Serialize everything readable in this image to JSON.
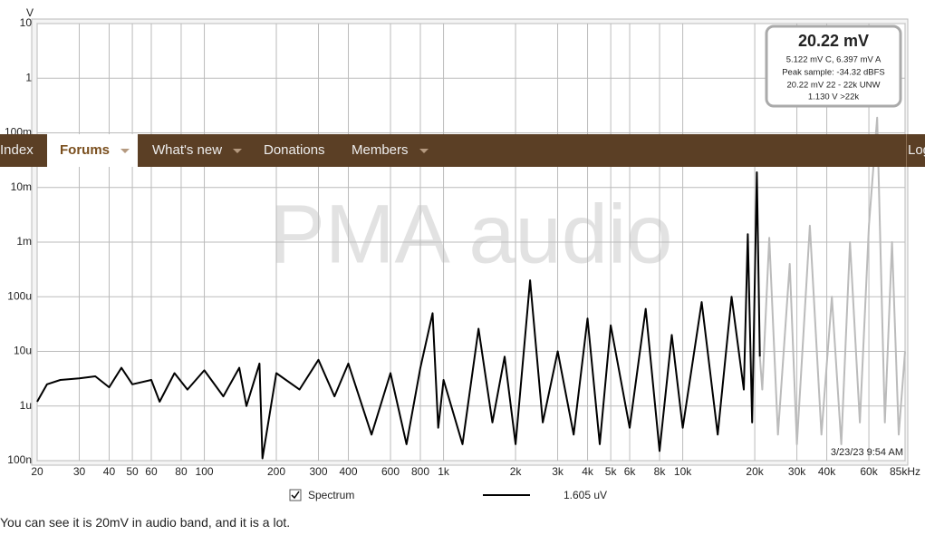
{
  "nav": {
    "items": [
      "Index",
      "Forums",
      "What's new",
      "Donations",
      "Members"
    ],
    "login": "Log"
  },
  "chart_data": {
    "type": "line",
    "ylabel": "V",
    "xscale": "log",
    "yscale": "log",
    "grid": true,
    "xlim": [
      20,
      85000
    ],
    "ylim": [
      1e-07,
      10
    ],
    "xticks": [
      20,
      30,
      40,
      50,
      60,
      80,
      100,
      200,
      300,
      400,
      600,
      800,
      {
        "value": 1000,
        "label": "1k"
      },
      {
        "value": 2000,
        "label": "2k"
      },
      {
        "value": 3000,
        "label": "3k"
      },
      {
        "value": 4000,
        "label": "4k"
      },
      {
        "value": 5000,
        "label": "5k"
      },
      {
        "value": 6000,
        "label": "6k"
      },
      {
        "value": 8000,
        "label": "8k"
      },
      {
        "value": 10000,
        "label": "10k"
      },
      {
        "value": 20000,
        "label": "20k"
      },
      {
        "value": 30000,
        "label": "30k"
      },
      {
        "value": 40000,
        "label": "40k"
      },
      {
        "value": 60000,
        "label": "60k"
      },
      {
        "value": 85000,
        "label": "85kHz"
      }
    ],
    "yticks": [
      10,
      1,
      {
        "value": 0.1,
        "label": "100m"
      },
      {
        "value": 0.01,
        "label": "10m"
      },
      {
        "value": 0.001,
        "label": "1m"
      },
      {
        "value": 0.0001,
        "label": "100u"
      },
      {
        "value": 1e-05,
        "label": "10u"
      },
      {
        "value": 1e-06,
        "label": "1u"
      },
      {
        "value": 1e-07,
        "label": "100n"
      }
    ],
    "series": [
      {
        "name": "Spectrum",
        "color": "#000000",
        "x": [
          20,
          22,
          25,
          30,
          35,
          40,
          45,
          50,
          60,
          65,
          75,
          85,
          100,
          120,
          140,
          150,
          170,
          175,
          200,
          250,
          300,
          350,
          400,
          500,
          600,
          700,
          800,
          900,
          950,
          1000,
          1200,
          1400,
          1600,
          1800,
          2000,
          2300,
          2600,
          3000,
          3500,
          4000,
          4500,
          5000,
          6000,
          7000,
          8000,
          9000,
          10000,
          12000,
          14000,
          16000,
          18000,
          18700,
          19500,
          20400,
          21000
        ],
        "values": [
          1.2e-06,
          2.5e-06,
          3e-06,
          3.2e-06,
          3.5e-06,
          2.2e-06,
          5e-06,
          2.5e-06,
          3e-06,
          1.2e-06,
          4e-06,
          2e-06,
          4.5e-06,
          1.5e-06,
          5e-06,
          1e-06,
          6e-06,
          1.1e-07,
          4e-06,
          2e-06,
          7e-06,
          1.5e-06,
          6e-06,
          3e-07,
          4e-06,
          2e-07,
          5e-06,
          5e-05,
          4e-07,
          3e-06,
          2e-07,
          2.6e-05,
          5e-07,
          8e-06,
          2e-07,
          0.0002,
          5e-07,
          1e-05,
          3e-07,
          4e-05,
          2e-07,
          3e-05,
          4e-07,
          6e-05,
          1.5e-07,
          2e-05,
          4e-07,
          8e-05,
          3e-07,
          0.0001,
          2e-06,
          0.0014,
          5e-07,
          0.019,
          8e-06
        ]
      },
      {
        "color": "#bbbbbb",
        "x": [
          21000,
          21500,
          23000,
          25000,
          28000,
          30000,
          34000,
          38000,
          42000,
          46000,
          50000,
          55000,
          60000,
          65000,
          70000,
          75000,
          80000,
          85000
        ],
        "values": [
          8e-06,
          2e-06,
          0.0012,
          3e-07,
          0.0004,
          2e-07,
          0.002,
          3e-07,
          0.0001,
          2e-07,
          0.001,
          5e-07,
          0.002,
          0.19,
          5e-07,
          0.001,
          3e-07,
          1e-05
        ]
      }
    ],
    "legend_value": "1.605 uV",
    "watermark": "PMA audio",
    "timestamp": "3/23/23 9:54 AM",
    "info_box": {
      "main": "20.22 mV",
      "lines": [
        "5.122 mV C, 6.397 mV A",
        "Peak sample: -34.32 dBFS",
        "20.22 mV 22 - 22k UNW",
        "1.130 V >22k"
      ]
    }
  },
  "post": {
    "text": "You can see it is 20mV in audio band, and it is a lot."
  }
}
